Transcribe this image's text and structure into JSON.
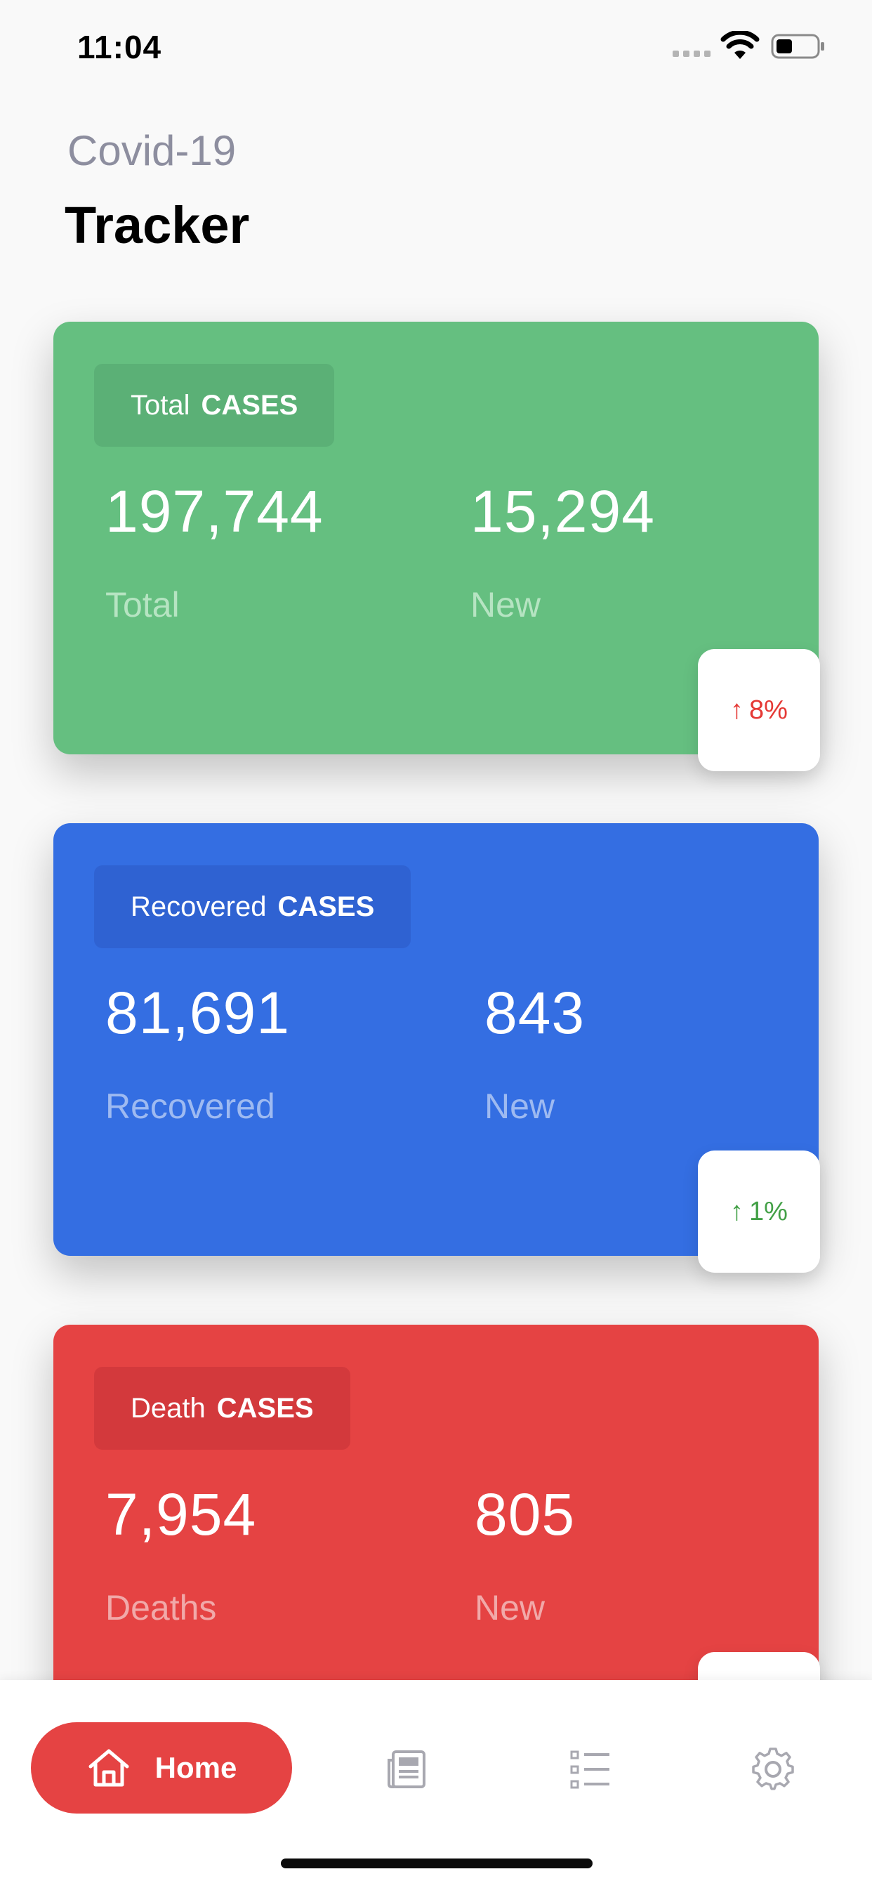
{
  "status_bar": {
    "time": "11:04"
  },
  "header": {
    "subtitle": "Covid-19",
    "title": "Tracker"
  },
  "cards": [
    {
      "pill_label": "Total",
      "pill_strong": "CASES",
      "primary_value": "197,744",
      "primary_label": "Total",
      "new_value": "15,294",
      "new_label": "New",
      "change": "8%",
      "change_color": "#e53935",
      "color": "#65bf80"
    },
    {
      "pill_label": "Recovered",
      "pill_strong": "CASES",
      "primary_value": "81,691",
      "primary_label": "Recovered",
      "new_value": "843",
      "new_label": "New",
      "change": "1%",
      "change_color": "#43a047",
      "color": "#346ee2"
    },
    {
      "pill_label": "Death",
      "pill_strong": "CASES",
      "primary_value": "7,954",
      "primary_label": "Deaths",
      "new_value": "805",
      "new_label": "New",
      "color": "#e54343"
    }
  ],
  "bottom_nav": {
    "home_label": "Home",
    "icons": [
      "home-icon",
      "newspaper-icon",
      "list-icon",
      "gear-icon"
    ],
    "active_color": "#e54343"
  }
}
